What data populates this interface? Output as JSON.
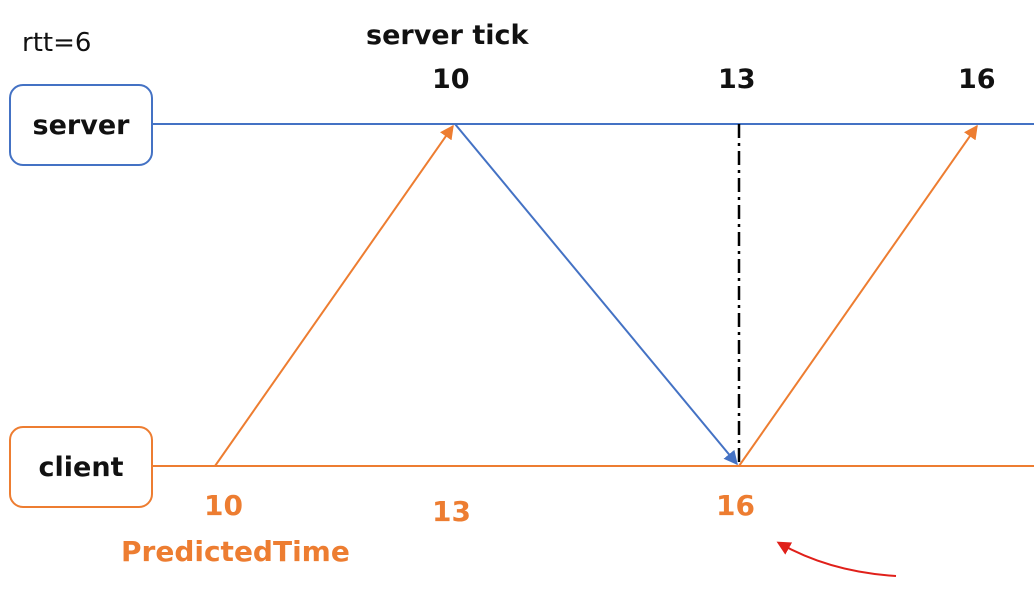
{
  "rtt_label": "rtt=6",
  "server_tick_title": "server tick",
  "server_label": "server",
  "client_label": "client",
  "server_ticks": [
    "10",
    "13",
    "16"
  ],
  "client_ticks": [
    "10",
    "13",
    "16"
  ],
  "predicted_time_label": "PredictedTime",
  "colors": {
    "server": "#4472c4",
    "client": "#ed7d31",
    "sync_line": "#000000",
    "annotation_arrow": "#e0201a",
    "text": "#111111"
  }
}
